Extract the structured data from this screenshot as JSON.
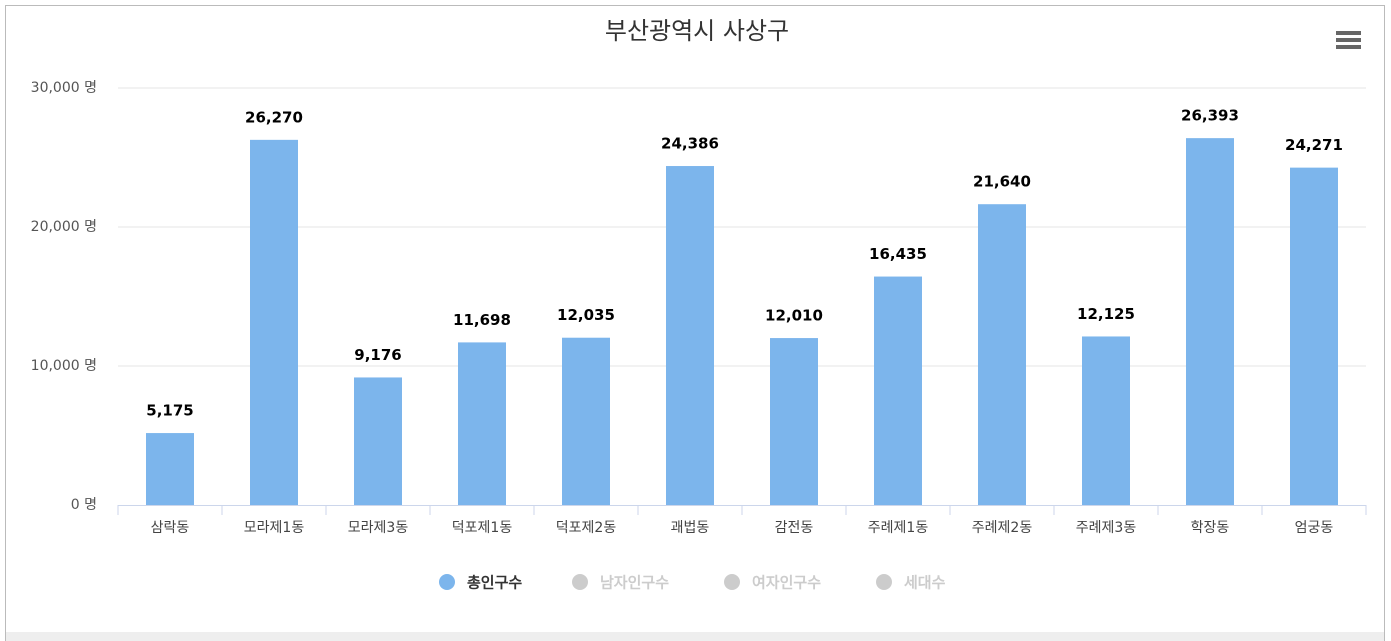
{
  "chart_data": {
    "type": "bar",
    "title": "부산광역시 사상구",
    "categories": [
      "삼락동",
      "모라제1동",
      "모라제3동",
      "덕포제1동",
      "덕포제2동",
      "괘법동",
      "감전동",
      "주례제1동",
      "주례제2동",
      "주례제3동",
      "학장동",
      "엄궁동"
    ],
    "series": [
      {
        "name": "총인구수",
        "color": "#7cb5ec",
        "visible": true,
        "values": [
          5175,
          26270,
          9176,
          11698,
          12035,
          24386,
          12010,
          16435,
          21640,
          12125,
          26393,
          24271
        ],
        "value_labels": [
          "5,175",
          "26,270",
          "9,176",
          "11,698",
          "12,035",
          "24,386",
          "12,010",
          "16,435",
          "21,640",
          "12,125",
          "26,393",
          "24,271"
        ]
      },
      {
        "name": "남자인구수",
        "color": "#cccccc",
        "visible": false
      },
      {
        "name": "여자인구수",
        "color": "#cccccc",
        "visible": false
      },
      {
        "name": "세대수",
        "color": "#cccccc",
        "visible": false
      }
    ],
    "ylim": [
      0,
      30000
    ],
    "yticks": [
      {
        "value": 0,
        "label": "0 명"
      },
      {
        "value": 10000,
        "label": "10,000 명"
      },
      {
        "value": 20000,
        "label": "20,000 명"
      },
      {
        "value": 30000,
        "label": "30,000 명"
      }
    ],
    "grid": true
  }
}
